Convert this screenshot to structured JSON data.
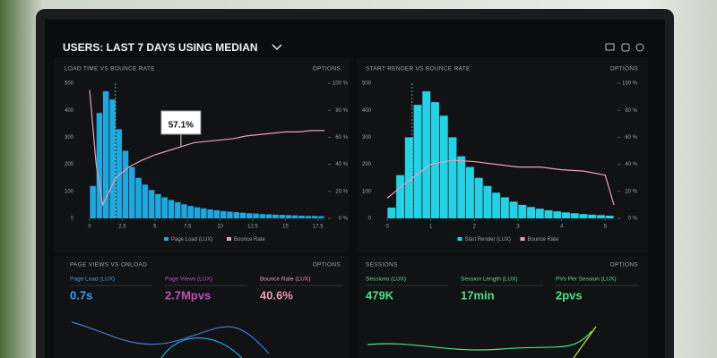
{
  "header": {
    "title": "USERS: LAST 7 DAYS USING MEDIAN"
  },
  "chart_data": [
    {
      "type": "histogram",
      "title": "LOAD TIME VS BOUNCE RATE",
      "options": "OPTIONS",
      "annotation": "57.1%",
      "bins": [
        0,
        0.5,
        1,
        1.5,
        2,
        2.5,
        3,
        3.5,
        4,
        4.5,
        5,
        5.5,
        6,
        6.5,
        7,
        7.5,
        8,
        8.5,
        9,
        9.5,
        10,
        10.5,
        11,
        11.5,
        12,
        12.5,
        13,
        13.5,
        14,
        14.5,
        15,
        15.5,
        16,
        16.5,
        17,
        17.5,
        18
      ],
      "series": [
        {
          "name": "Page Load (LUX)",
          "color": "#1fa8e0",
          "values": [
            120,
            390,
            470,
            440,
            330,
            250,
            190,
            150,
            125,
            105,
            90,
            78,
            68,
            60,
            52,
            46,
            41,
            37,
            33,
            30,
            27,
            25,
            23,
            21,
            19,
            18,
            16,
            15,
            14,
            13,
            12,
            11,
            10,
            9,
            9,
            8
          ]
        },
        {
          "name": "Bounce Rate",
          "color": "#e8a0b8",
          "axis": "y2",
          "x": [
            0,
            0.5,
            1,
            1.5,
            2,
            3,
            4,
            5,
            6,
            7,
            8,
            9,
            10,
            11,
            12,
            13,
            14,
            15,
            16,
            17,
            18
          ],
          "values": [
            95,
            40,
            10,
            20,
            30,
            38,
            43,
            47,
            50,
            53,
            56,
            57,
            58,
            59,
            61,
            62,
            63,
            64,
            64,
            65,
            65
          ]
        }
      ],
      "xlim": [
        0,
        18
      ],
      "xticks": [
        0,
        2.5,
        5,
        7.5,
        10,
        12.5,
        15,
        17.5
      ],
      "ylim": [
        0,
        500
      ],
      "yticks": [
        0,
        100,
        200,
        300,
        400,
        500
      ],
      "y2lim": [
        0,
        100
      ],
      "y2ticks": [
        {
          "value": 0,
          "label": "0 %"
        },
        {
          "value": 20,
          "label": "20 %"
        },
        {
          "value": 40,
          "label": "40 %"
        },
        {
          "value": 60,
          "label": "60 %"
        },
        {
          "value": 80,
          "label": "80 %"
        },
        {
          "value": 100,
          "label": "100 %"
        }
      ]
    },
    {
      "type": "histogram",
      "title": "START RENDER VS BOUNCE RATE",
      "options": "OPTIONS",
      "bins": [
        0,
        0.2,
        0.4,
        0.6,
        0.8,
        1,
        1.2,
        1.4,
        1.6,
        1.8,
        2,
        2.2,
        2.4,
        2.6,
        2.8,
        3,
        3.2,
        3.4,
        3.6,
        3.8,
        4,
        4.2,
        4.4,
        4.6,
        4.8,
        5,
        5.2
      ],
      "series": [
        {
          "name": "Start Render (LUX)",
          "color": "#22d3e6",
          "values": [
            40,
            160,
            300,
            420,
            470,
            430,
            380,
            300,
            230,
            190,
            150,
            120,
            95,
            78,
            62,
            50,
            42,
            36,
            30,
            26,
            22,
            19,
            16,
            14,
            12,
            10
          ]
        },
        {
          "name": "Bounce Rate",
          "color": "#e8a0b8",
          "axis": "y2",
          "x": [
            0,
            0.5,
            1,
            1.5,
            2,
            2.5,
            3,
            3.5,
            4,
            4.5,
            5,
            5.2
          ],
          "values": [
            15,
            28,
            40,
            43,
            42,
            40,
            38,
            38,
            36,
            35,
            32,
            10
          ]
        }
      ],
      "xlim": [
        0,
        5.2
      ],
      "xticks": [
        0,
        1,
        2,
        3,
        4,
        5
      ],
      "ylim": [
        0,
        500
      ],
      "yticks": [
        0,
        100,
        200,
        300,
        400,
        500
      ],
      "y2lim": [
        0,
        100
      ],
      "y2ticks": [
        {
          "value": 0,
          "label": "0 %"
        },
        {
          "value": 20,
          "label": "20 %"
        },
        {
          "value": 40,
          "label": "40 %"
        },
        {
          "value": 60,
          "label": "60 %"
        },
        {
          "value": 80,
          "label": "80 %"
        },
        {
          "value": 100,
          "label": "100 %"
        }
      ]
    }
  ],
  "panels": [
    {
      "title": "PAGE VIEWS VS ONLOAD",
      "options": "OPTIONS",
      "kpis": [
        {
          "label": "Page Load (LUX)",
          "value": "0.7s"
        },
        {
          "label": "Page Views (LUX)",
          "value": "2.7Mpvs"
        },
        {
          "label": "Bounce Rate (LUX)",
          "value": "40.6%"
        }
      ]
    },
    {
      "title": "SESSIONS",
      "options": "OPTIONS",
      "kpis": [
        {
          "label": "Sessions (LUX)",
          "value": "479K"
        },
        {
          "label": "Session Length (LUX)",
          "value": "17min"
        },
        {
          "label": "PVs Per Session (LUX)",
          "value": "2pvs"
        }
      ]
    }
  ]
}
